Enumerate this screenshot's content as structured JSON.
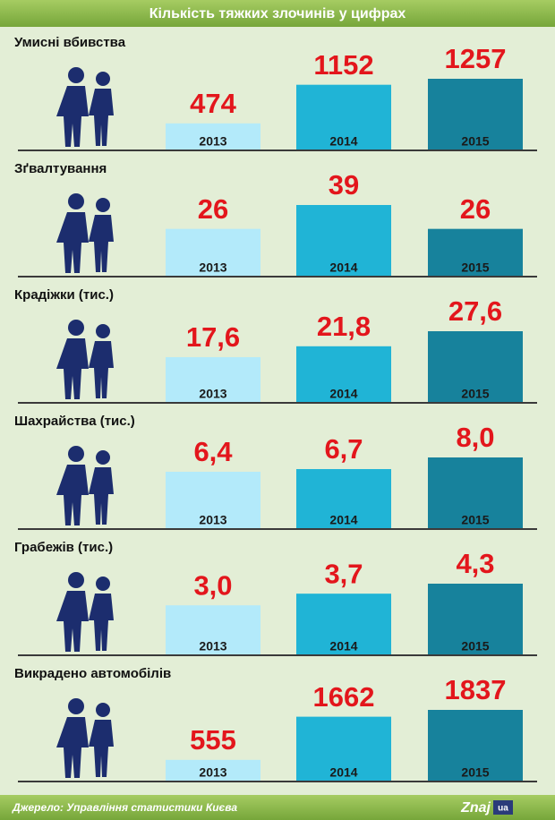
{
  "header": {
    "title": "Кількість тяжких злочинів у цифрах"
  },
  "footer": {
    "source": "Джерело: Управління статистики Києва",
    "logo": "Znaj",
    "logo_domain": "ua"
  },
  "chart_data": [
    {
      "type": "bar",
      "title": "Умисні вбивства",
      "categories": [
        "2013",
        "2014",
        "2015"
      ],
      "values": [
        474,
        1152,
        1257
      ],
      "colors": [
        "#b3eafa",
        "#20b4d6",
        "#17829c"
      ]
    },
    {
      "type": "bar",
      "title": "Зґвалтування",
      "categories": [
        "2013",
        "2014",
        "2015"
      ],
      "values": [
        26,
        39,
        26
      ],
      "colors": [
        "#b3eafa",
        "#20b4d6",
        "#17829c"
      ]
    },
    {
      "type": "bar",
      "title": "Крадіжки (тис.)",
      "categories": [
        "2013",
        "2014",
        "2015"
      ],
      "values": [
        17.6,
        21.8,
        27.6
      ],
      "value_labels": [
        "17,6",
        "21,8",
        "27,6"
      ],
      "colors": [
        "#b3eafa",
        "#20b4d6",
        "#17829c"
      ]
    },
    {
      "type": "bar",
      "title": "Шахрайства (тис.)",
      "categories": [
        "2013",
        "2014",
        "2015"
      ],
      "values": [
        6.4,
        6.7,
        8.0
      ],
      "value_labels": [
        "6,4",
        "6,7",
        "8,0"
      ],
      "colors": [
        "#b3eafa",
        "#20b4d6",
        "#17829c"
      ]
    },
    {
      "type": "bar",
      "title": "Грабежів (тис.)",
      "categories": [
        "2013",
        "2014",
        "2015"
      ],
      "values": [
        3.0,
        3.7,
        4.3
      ],
      "value_labels": [
        "3,0",
        "3,7",
        "4,3"
      ],
      "colors": [
        "#b3eafa",
        "#20b4d6",
        "#17829c"
      ]
    },
    {
      "type": "bar",
      "title": "Викрадено автомобілів",
      "categories": [
        "2013",
        "2014",
        "2015"
      ],
      "values": [
        555,
        1662,
        1837
      ],
      "colors": [
        "#b3eafa",
        "#20b4d6",
        "#17829c"
      ]
    }
  ]
}
